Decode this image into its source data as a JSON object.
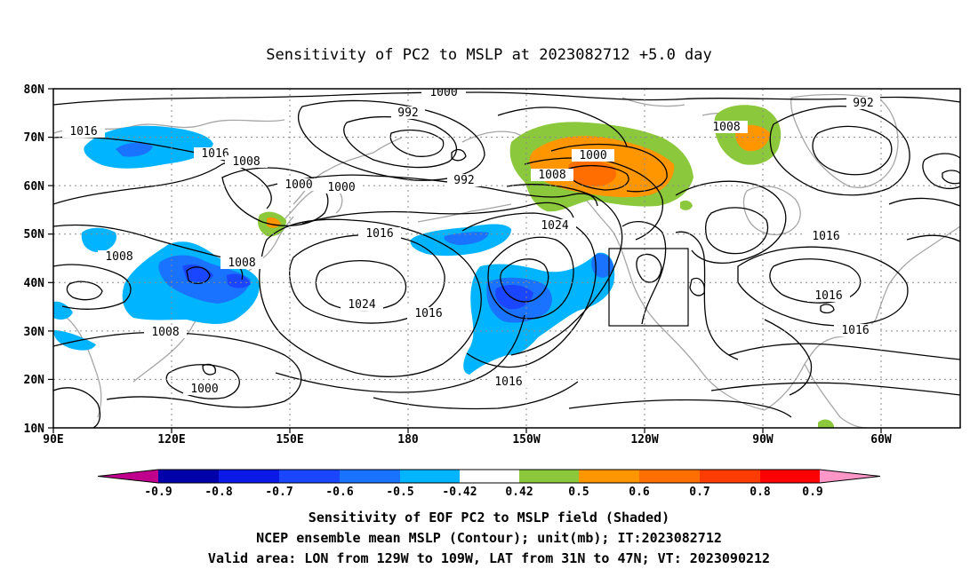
{
  "title": "Sensitivity of PC2 to MSLP at 2023082712 +5.0 day",
  "map": {
    "lon_labels": [
      "90E",
      "120E",
      "150E",
      "180",
      "150W",
      "120W",
      "90W",
      "60W"
    ],
    "lat_labels": [
      "80N",
      "70N",
      "60N",
      "50N",
      "40N",
      "30N",
      "20N",
      "10N"
    ],
    "valid_box": {
      "lon_from": "129W",
      "lon_to": "109W",
      "lat_from": "31N",
      "lat_to": "47N"
    }
  },
  "contour_labels": [
    {
      "id": "c1000a",
      "text": "1000"
    },
    {
      "id": "c992a",
      "text": "992"
    },
    {
      "id": "c1016a",
      "text": "1016"
    },
    {
      "id": "c1016b",
      "text": "1016"
    },
    {
      "id": "c1008a",
      "text": "1008"
    },
    {
      "id": "c1000b",
      "text": "1000"
    },
    {
      "id": "c1000c",
      "text": "1000"
    },
    {
      "id": "c992b",
      "text": "992"
    },
    {
      "id": "c1000d",
      "text": "1000"
    },
    {
      "id": "c1008b",
      "text": "1008"
    },
    {
      "id": "c1008c",
      "text": "1008"
    },
    {
      "id": "c992c",
      "text": "992"
    },
    {
      "id": "c1016c",
      "text": "1016"
    },
    {
      "id": "c1024a",
      "text": "1024"
    },
    {
      "id": "c1008d",
      "text": "1008"
    },
    {
      "id": "c1008e",
      "text": "1008"
    },
    {
      "id": "c1024b",
      "text": "1024"
    },
    {
      "id": "c1016d",
      "text": "1016"
    },
    {
      "id": "c1016e",
      "text": "1016"
    },
    {
      "id": "c1008f",
      "text": "1008"
    },
    {
      "id": "c1000e",
      "text": "1000"
    },
    {
      "id": "c1016f",
      "text": "1016"
    },
    {
      "id": "c1016g",
      "text": "1016"
    },
    {
      "id": "c1016h",
      "text": "1016"
    }
  ],
  "colorbar": {
    "colors": [
      "#c0008c",
      "#0000aa",
      "#0a19e6",
      "#1a46ff",
      "#1973ff",
      "#00b4ff",
      "#ffffff",
      "#8cc83c",
      "#ff9600",
      "#ff6e00",
      "#ff3c00",
      "#ff0000",
      "#ff96c8"
    ],
    "labels": [
      "-0.9",
      "-0.8",
      "-0.7",
      "-0.6",
      "-0.5",
      "-0.42",
      "0.42",
      "0.5",
      "0.6",
      "0.7",
      "0.8",
      "0.9"
    ]
  },
  "captions": [
    "Sensitivity of EOF PC2 to MSLP field (Shaded)",
    "NCEP ensemble mean MSLP (Contour); unit(mb); IT:2023082712",
    "Valid area: LON from 129W to 109W, LAT from 31N to 47N; VT: 2023090212"
  ]
}
